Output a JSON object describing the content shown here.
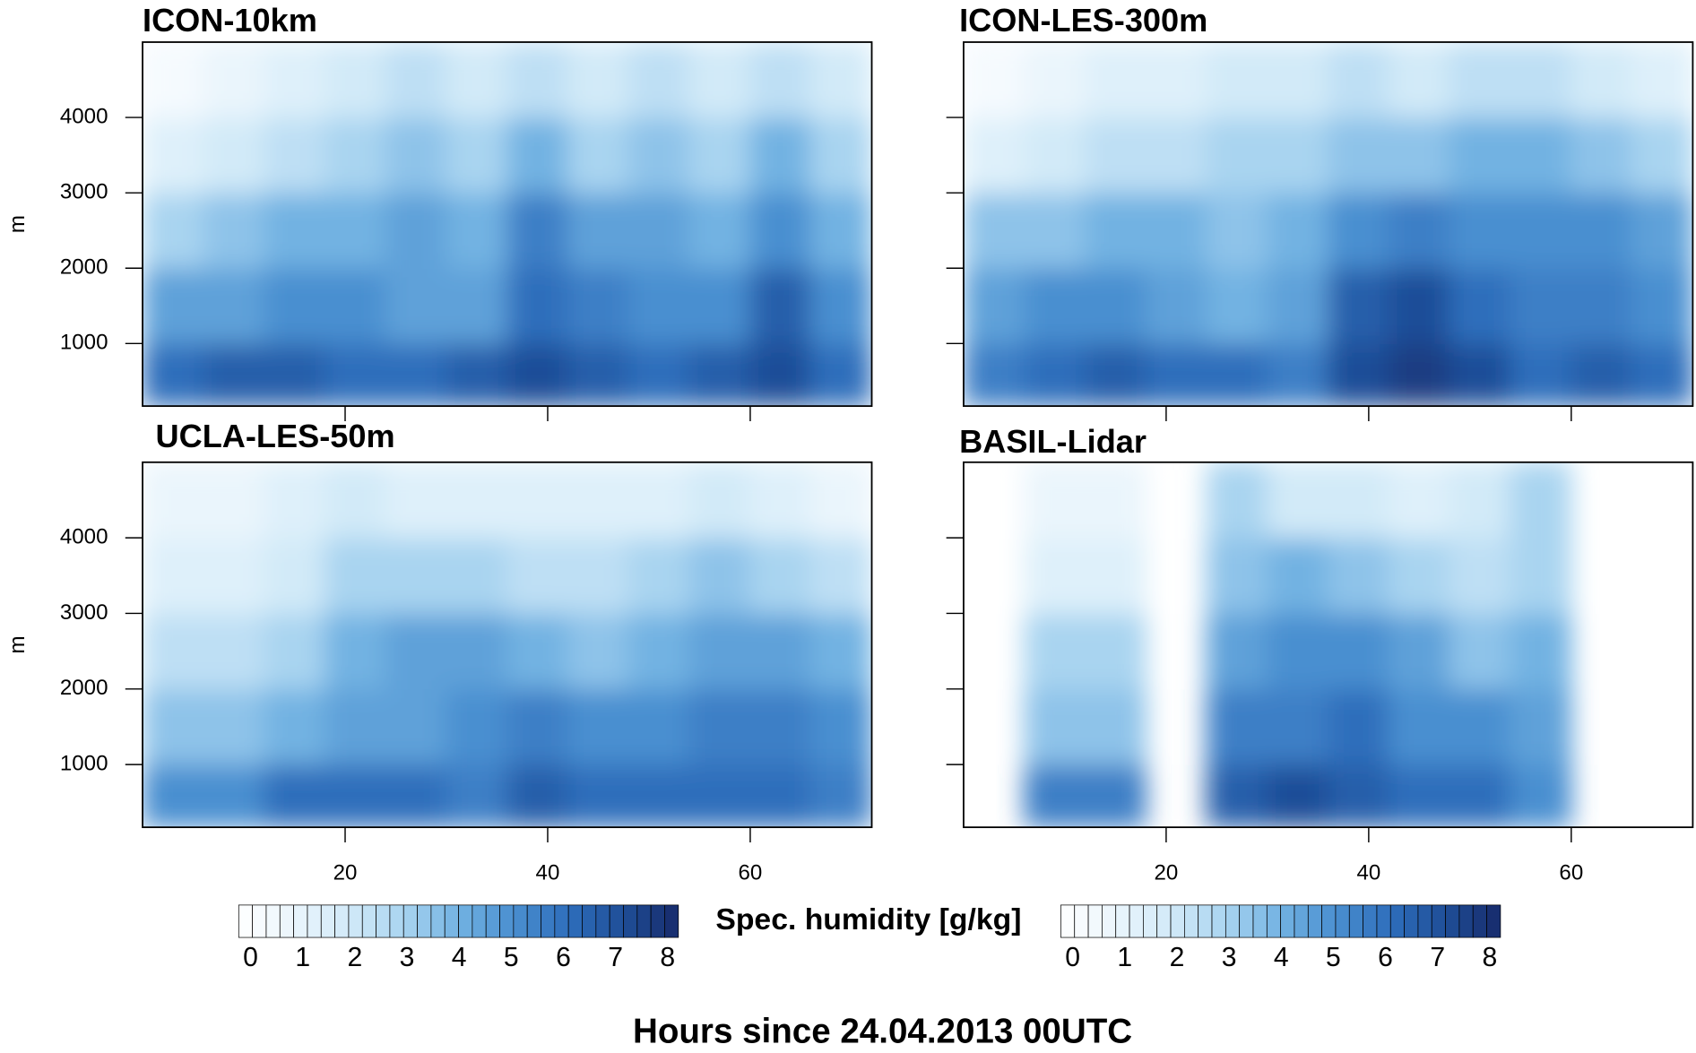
{
  "chart_data": [
    {
      "type": "heatmap",
      "title": "ICON-10km",
      "ylabel": "m",
      "show_xtick_labels": false,
      "show_ytick_labels": true,
      "xlim": [
        0,
        72
      ],
      "ylim": [
        170,
        5000
      ],
      "xticks": [
        20,
        40,
        60
      ],
      "yticks": [
        1000,
        2000,
        3000,
        4000
      ],
      "x_bins": [
        0,
        6,
        12,
        18,
        24,
        30,
        36,
        42,
        48,
        54,
        60,
        66,
        72
      ],
      "y_bins": [
        170,
        1000,
        2000,
        3000,
        4000,
        5000
      ],
      "values": [
        [
          6,
          6.5,
          6.5,
          6,
          6,
          6.5,
          7,
          6.5,
          6,
          6.5,
          7,
          6
        ],
        [
          4.5,
          4.5,
          5,
          5,
          4.5,
          4.5,
          6,
          5.5,
          5,
          5,
          6.5,
          5
        ],
        [
          3,
          3.5,
          4,
          4,
          4.5,
          4,
          5.5,
          4.5,
          4.5,
          4,
          5,
          4
        ],
        [
          1.5,
          2,
          2.5,
          3,
          3.5,
          3,
          4,
          3,
          3.5,
          3,
          4,
          3
        ],
        [
          0.5,
          1,
          1.5,
          2,
          2.5,
          2,
          2.5,
          2,
          2.5,
          2,
          2.5,
          2
        ]
      ]
    },
    {
      "type": "heatmap",
      "title": "ICON-LES-300m",
      "show_xtick_labels": false,
      "show_ytick_labels": false,
      "xlim": [
        0,
        72
      ],
      "ylim": [
        170,
        5000
      ],
      "xticks": [
        20,
        40,
        60
      ],
      "yticks": [
        1000,
        2000,
        3000,
        4000
      ],
      "x_bins": [
        0,
        6,
        12,
        18,
        24,
        30,
        36,
        42,
        48,
        54,
        60,
        66,
        72
      ],
      "y_bins": [
        170,
        1000,
        2000,
        3000,
        4000,
        5000
      ],
      "values": [
        [
          5.5,
          6,
          6.5,
          6,
          6,
          5.5,
          7,
          7.5,
          7,
          6,
          6.5,
          6
        ],
        [
          4.5,
          5,
          5,
          4.5,
          4,
          4.5,
          6.5,
          7,
          6,
          5.5,
          5.5,
          5
        ],
        [
          3.5,
          3.5,
          4,
          4,
          3.5,
          4,
          5,
          5.5,
          5,
          5,
          5,
          4.5
        ],
        [
          1.5,
          2,
          2.5,
          2.5,
          3,
          3,
          3.5,
          3.5,
          4,
          4,
          3.5,
          3
        ],
        [
          0.5,
          1,
          1.5,
          1.5,
          2,
          2,
          2.5,
          2,
          2.5,
          2.5,
          2,
          1.5
        ]
      ]
    },
    {
      "type": "heatmap",
      "title": "UCLA-LES-50m",
      "ylabel": "m",
      "show_xtick_labels": true,
      "show_ytick_labels": true,
      "xlim": [
        0,
        72
      ],
      "ylim": [
        170,
        5000
      ],
      "xticks": [
        20,
        40,
        60
      ],
      "yticks": [
        1000,
        2000,
        3000,
        4000
      ],
      "x_bins": [
        0,
        6,
        12,
        18,
        24,
        30,
        36,
        42,
        48,
        54,
        60,
        66,
        72
      ],
      "y_bins": [
        170,
        1000,
        2000,
        3000,
        4000,
        5000
      ],
      "values": [
        [
          5,
          5,
          6,
          6,
          6,
          5.5,
          6.5,
          6,
          6,
          6,
          6,
          5.5
        ],
        [
          3.5,
          3.5,
          4,
          4.5,
          4.5,
          5,
          5.5,
          5,
          5,
          5.5,
          5.5,
          5
        ],
        [
          2.5,
          2.5,
          3,
          4,
          4.5,
          4.5,
          4,
          3.5,
          4,
          4.5,
          4.5,
          4
        ],
        [
          1.5,
          1.5,
          2,
          3,
          3,
          3,
          2.5,
          2.5,
          3,
          3.5,
          3,
          2.5
        ],
        [
          1,
          1,
          1.5,
          2,
          1.5,
          1.5,
          1.5,
          1.5,
          1.5,
          2,
          1.5,
          1
        ]
      ]
    },
    {
      "type": "heatmap",
      "title": "BASIL-Lidar",
      "show_xtick_labels": true,
      "show_ytick_labels": false,
      "xlim": [
        0,
        72
      ],
      "ylim": [
        170,
        5000
      ],
      "xticks": [
        20,
        40,
        60
      ],
      "yticks": [
        1000,
        2000,
        3000,
        4000
      ],
      "x_bins": [
        0,
        6,
        12,
        18,
        24,
        30,
        36,
        42,
        48,
        54,
        60,
        66,
        72
      ],
      "y_bins": [
        170,
        1000,
        2000,
        3000,
        4000,
        5000
      ],
      "values": [
        [
          null,
          5.5,
          5.5,
          null,
          6.5,
          7,
          6.5,
          6,
          6,
          5,
          null,
          null
        ],
        [
          null,
          3.5,
          3.5,
          null,
          5.5,
          5.5,
          6,
          5,
          5,
          4.5,
          null,
          null
        ],
        [
          null,
          3,
          3,
          null,
          4.5,
          5,
          5,
          4.5,
          3.5,
          4,
          null,
          null
        ],
        [
          null,
          1.5,
          1.5,
          null,
          3.5,
          4,
          3.5,
          3,
          2.5,
          3,
          null,
          null
        ],
        [
          null,
          1,
          1,
          null,
          3,
          2,
          2,
          1.5,
          2,
          3,
          null,
          null
        ]
      ]
    }
  ],
  "colorbar": {
    "label": "Spec. humidity [g/kg]",
    "lim": [
      0,
      8
    ],
    "ticks": [
      0,
      1,
      2,
      3,
      4,
      5,
      6,
      7,
      8
    ],
    "colors": [
      "#ffffff",
      "#eaf5fc",
      "#d2eaf8",
      "#a9d4f0",
      "#72b2e2",
      "#4a8fd0",
      "#2e6ebb",
      "#1f4e98",
      "#172b6b"
    ]
  },
  "xlabel": "Hours since 24.04.2013 00UTC"
}
